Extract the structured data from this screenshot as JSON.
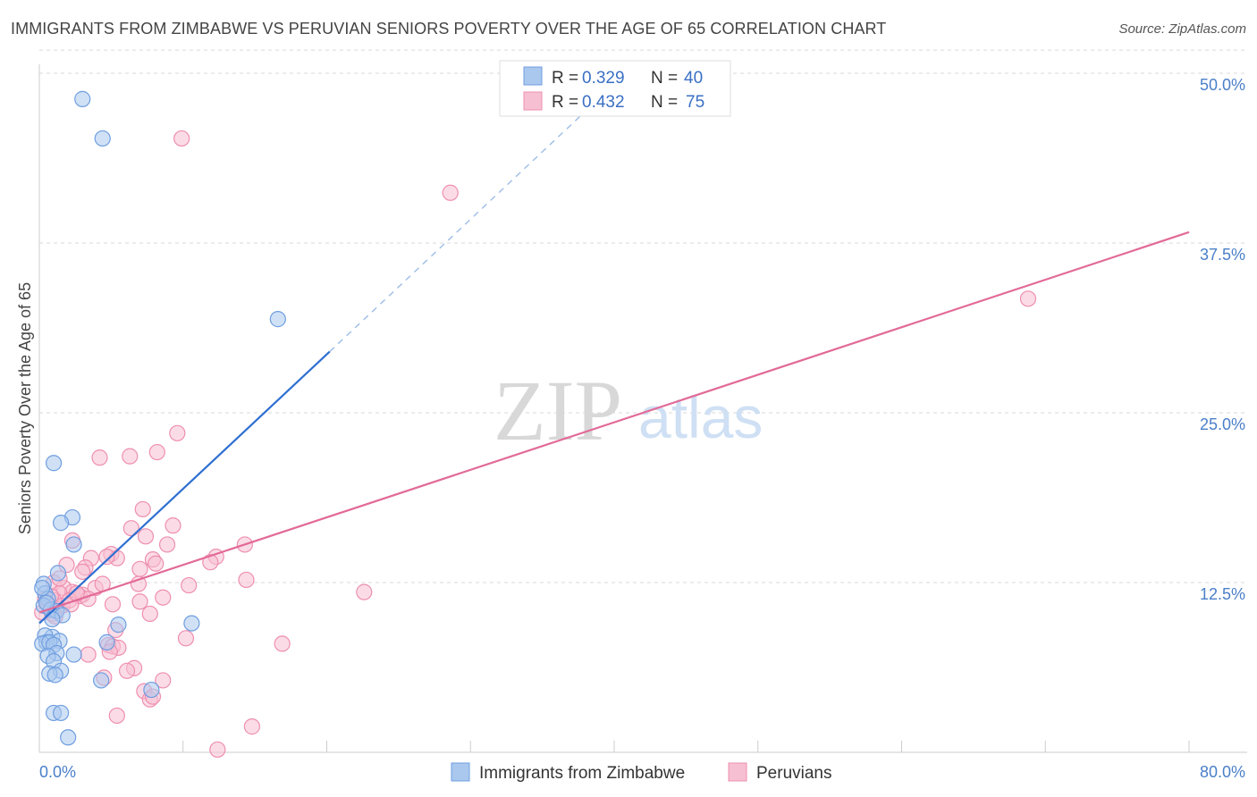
{
  "header": {
    "title": "IMMIGRANTS FROM ZIMBABWE VS PERUVIAN SENIORS POVERTY OVER THE AGE OF 65 CORRELATION CHART",
    "source": "Source: ZipAtlas.com"
  },
  "watermark": {
    "zip": "ZIP",
    "atlas": "atlas"
  },
  "colors": {
    "blue_fill": "#aac8ee",
    "blue_stroke": "#6f9ee0",
    "blue_line": "#2e6fd1",
    "pink_fill": "#f7bfd2",
    "pink_stroke": "#ee8fb0",
    "pink_line": "#e26a97",
    "grid": "#d9d9d9",
    "tick_text": "#4a7fc9"
  },
  "legend": {
    "rows": [
      {
        "r_label": "R = ",
        "r_value": "0.329",
        "n_label": "N = ",
        "n_value": "40"
      },
      {
        "r_label": "R = ",
        "r_value": "0.432",
        "n_label": "N = ",
        "n_value": "75"
      }
    ]
  },
  "chart_data": {
    "type": "scatter",
    "title": "IMMIGRANTS FROM ZIMBABWE VS PERUVIAN SENIORS POVERTY OVER THE AGE OF 65 CORRELATION CHART",
    "xlabel": "",
    "ylabel": "Seniors Poverty Over the Age of 65",
    "xlim": [
      0,
      80
    ],
    "ylim": [
      0,
      50
    ],
    "x_tick_labels": [
      "0.0%",
      "80.0%"
    ],
    "y_ticks": [
      12.5,
      25.0,
      37.5,
      50.0
    ],
    "y_tick_labels": [
      "12.5%",
      "25.0%",
      "37.5%",
      "50.0%"
    ],
    "series": [
      {
        "name": "Immigrants from Zimbabwe",
        "R": 0.329,
        "N": 40,
        "trend": {
          "x0": 0,
          "y0": 9.5,
          "x1": 20.2,
          "y1": 29.5,
          "dashed_to_x": 38.0,
          "dashed_to_y": 47.2
        },
        "points": [
          [
            3.0,
            48.1
          ],
          [
            4.4,
            45.2
          ],
          [
            16.6,
            31.9
          ],
          [
            1.0,
            21.3
          ],
          [
            2.3,
            17.3
          ],
          [
            1.5,
            16.9
          ],
          [
            2.4,
            15.3
          ],
          [
            1.3,
            13.2
          ],
          [
            0.3,
            12.4
          ],
          [
            0.4,
            11.7
          ],
          [
            0.6,
            11.3
          ],
          [
            0.3,
            10.8
          ],
          [
            0.8,
            10.5
          ],
          [
            1.2,
            10.4
          ],
          [
            1.6,
            10.1
          ],
          [
            10.6,
            9.5
          ],
          [
            5.5,
            9.4
          ],
          [
            0.9,
            8.5
          ],
          [
            0.4,
            8.6
          ],
          [
            1.4,
            8.2
          ],
          [
            0.5,
            8.1
          ],
          [
            0.2,
            8.0
          ],
          [
            0.7,
            8.1
          ],
          [
            1.0,
            7.9
          ],
          [
            4.7,
            8.1
          ],
          [
            1.2,
            7.3
          ],
          [
            2.4,
            7.2
          ],
          [
            0.6,
            7.1
          ],
          [
            1.0,
            6.7
          ],
          [
            1.5,
            6.0
          ],
          [
            0.7,
            5.8
          ],
          [
            1.1,
            5.7
          ],
          [
            4.3,
            5.3
          ],
          [
            7.8,
            4.6
          ],
          [
            1.0,
            2.9
          ],
          [
            1.5,
            2.9
          ],
          [
            2.0,
            1.1
          ],
          [
            0.2,
            12.1
          ],
          [
            0.5,
            11.0
          ],
          [
            0.9,
            9.8
          ]
        ]
      },
      {
        "name": "Peruvians",
        "R": 0.432,
        "N": 75,
        "trend": {
          "x0": 0,
          "y0": 10.3,
          "x1": 80,
          "y1": 38.3
        },
        "points": [
          [
            9.9,
            45.2
          ],
          [
            28.6,
            41.2
          ],
          [
            68.8,
            33.4
          ],
          [
            9.6,
            23.5
          ],
          [
            4.2,
            21.7
          ],
          [
            6.3,
            21.8
          ],
          [
            8.2,
            22.1
          ],
          [
            7.2,
            17.9
          ],
          [
            9.3,
            16.7
          ],
          [
            6.4,
            16.5
          ],
          [
            7.4,
            15.9
          ],
          [
            2.3,
            15.6
          ],
          [
            8.9,
            15.3
          ],
          [
            14.3,
            15.3
          ],
          [
            5.0,
            14.6
          ],
          [
            5.4,
            14.3
          ],
          [
            4.7,
            14.4
          ],
          [
            3.6,
            14.3
          ],
          [
            12.3,
            14.4
          ],
          [
            7.9,
            14.2
          ],
          [
            8.1,
            13.9
          ],
          [
            11.9,
            14.0
          ],
          [
            3.2,
            13.6
          ],
          [
            7.0,
            13.5
          ],
          [
            3.0,
            13.3
          ],
          [
            14.4,
            12.7
          ],
          [
            1.0,
            12.5
          ],
          [
            6.9,
            12.4
          ],
          [
            10.4,
            12.3
          ],
          [
            1.7,
            12.1
          ],
          [
            2.3,
            11.8
          ],
          [
            3.0,
            11.6
          ],
          [
            3.9,
            12.1
          ],
          [
            22.6,
            11.8
          ],
          [
            1.4,
            11.7
          ],
          [
            2.8,
            11.5
          ],
          [
            0.4,
            11.3
          ],
          [
            8.6,
            11.4
          ],
          [
            7.0,
            11.1
          ],
          [
            3.4,
            11.3
          ],
          [
            1.0,
            11.2
          ],
          [
            5.1,
            10.9
          ],
          [
            0.6,
            10.9
          ],
          [
            1.2,
            10.5
          ],
          [
            1.6,
            10.8
          ],
          [
            0.2,
            10.3
          ],
          [
            2.1,
            11.2
          ],
          [
            0.9,
            10.2
          ],
          [
            7.7,
            10.2
          ],
          [
            1.1,
            10.0
          ],
          [
            10.2,
            8.4
          ],
          [
            16.9,
            8.0
          ],
          [
            4.8,
            7.9
          ],
          [
            5.1,
            7.8
          ],
          [
            5.5,
            7.7
          ],
          [
            4.9,
            7.4
          ],
          [
            3.4,
            7.2
          ],
          [
            5.3,
            9.0
          ],
          [
            6.6,
            6.2
          ],
          [
            6.1,
            6.0
          ],
          [
            4.5,
            5.5
          ],
          [
            8.6,
            5.3
          ],
          [
            7.3,
            4.5
          ],
          [
            7.7,
            3.9
          ],
          [
            7.9,
            4.1
          ],
          [
            5.4,
            2.7
          ],
          [
            14.8,
            1.9
          ],
          [
            12.4,
            0.2
          ],
          [
            1.4,
            12.8
          ],
          [
            2.2,
            10.9
          ],
          [
            0.5,
            11.0
          ],
          [
            4.4,
            12.4
          ],
          [
            2.6,
            11.7
          ],
          [
            1.9,
            13.8
          ],
          [
            0.8,
            11.5
          ]
        ]
      }
    ]
  }
}
